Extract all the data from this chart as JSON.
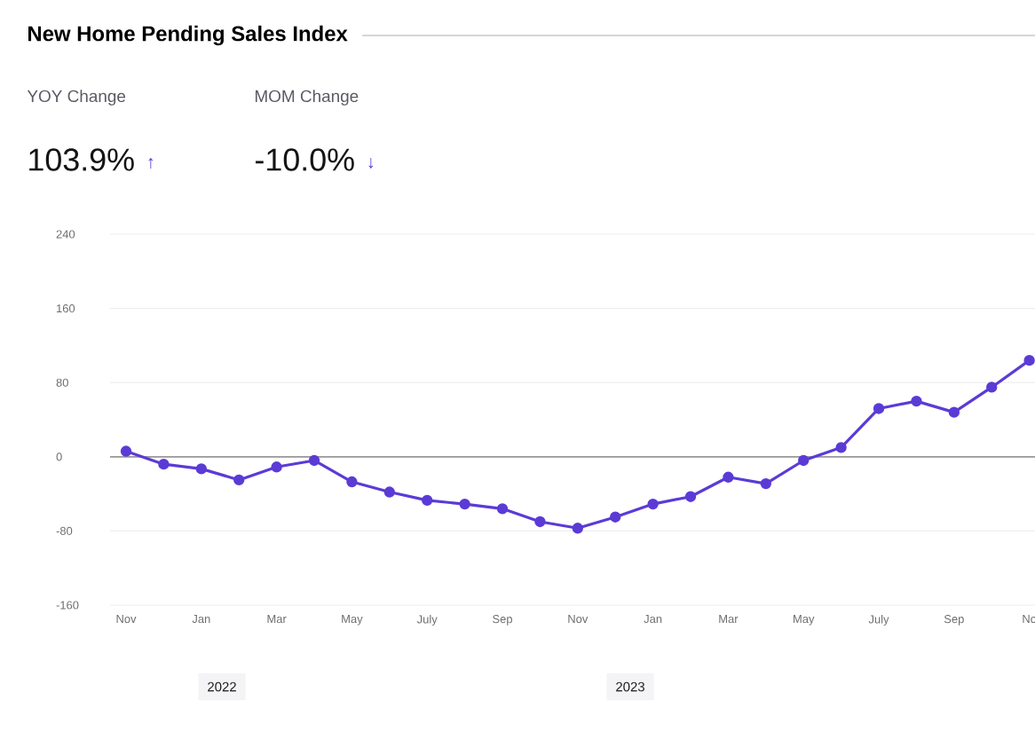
{
  "chart_data": {
    "type": "line",
    "title": "New Home Pending Sales Index",
    "annotations": [
      "YOY Change",
      "103.9%",
      "↑",
      "MOM Change",
      "-10.0%",
      "↓",
      "2022",
      "2023"
    ],
    "categories": [
      "Nov",
      null,
      "Jan",
      null,
      "Mar",
      null,
      "May",
      null,
      "July",
      null,
      "Sep",
      null,
      "Nov",
      null,
      "Jan",
      null,
      "Mar",
      null,
      "May",
      null,
      "July",
      null,
      "Sep",
      null,
      "No"
    ],
    "series": [
      {
        "color": "#5b3bd6",
        "values": [
          6,
          -8,
          -13,
          -25,
          -11,
          -4,
          -27,
          -38,
          -47,
          -51,
          -56,
          -70,
          -77,
          -65,
          -51,
          -43,
          -22,
          -29,
          -4,
          10,
          52,
          60,
          48,
          75,
          104
        ]
      }
    ],
    "ylim": [
      -160,
      240
    ],
    "yticks": [
      -160,
      -80,
      0,
      80,
      160,
      240
    ],
    "grid": "y",
    "marker": "circle",
    "line_style": "solid",
    "ref_lines": [
      {
        "axis": "y",
        "value": 0,
        "color": "#999999"
      }
    ]
  }
}
